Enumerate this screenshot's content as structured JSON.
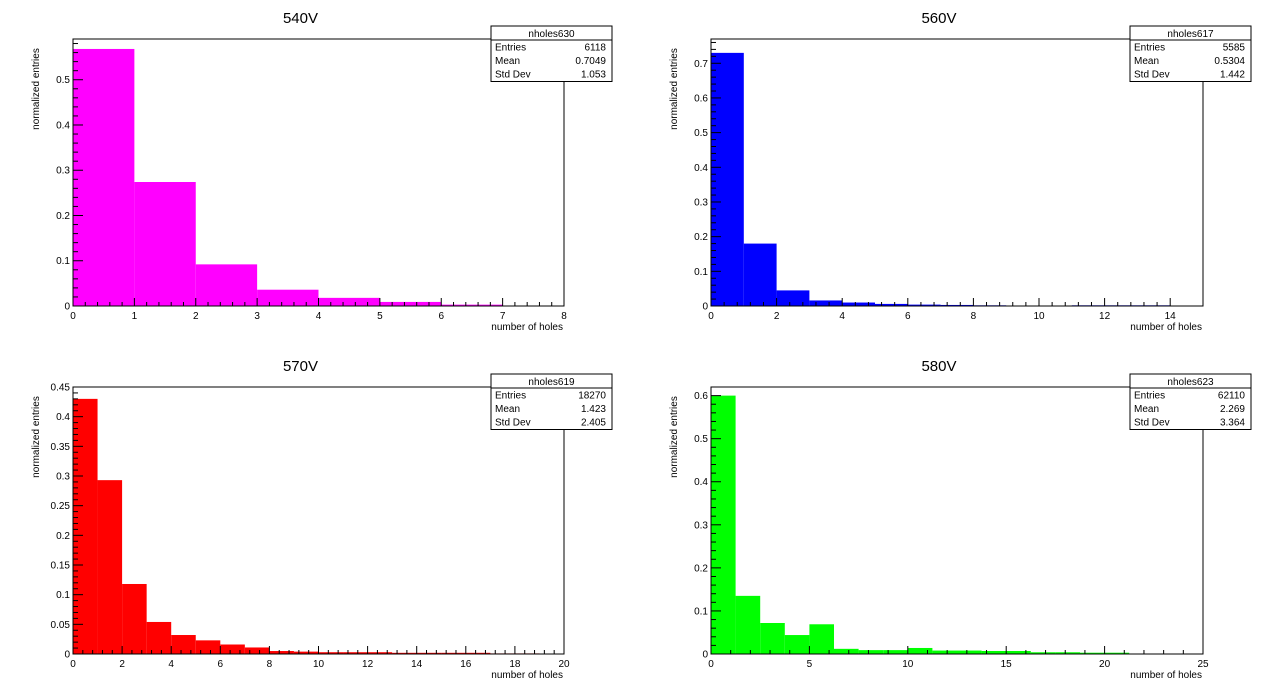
{
  "chart_data": [
    {
      "type": "bar",
      "title": "540V",
      "xlabel": "number of holes",
      "ylabel": "normalized entries",
      "color": "#ff00ff",
      "xlim": [
        0,
        8
      ],
      "ylim": [
        0,
        0.59
      ],
      "xticks": [
        0,
        1,
        2,
        3,
        4,
        5,
        6,
        7,
        8
      ],
      "yticks": [
        0,
        0.1,
        0.2,
        0.3,
        0.4,
        0.5
      ],
      "bin_edges": [
        0,
        1,
        2,
        3,
        4,
        5,
        6,
        7,
        8
      ],
      "values": [
        0.568,
        0.274,
        0.092,
        0.036,
        0.018,
        0.009,
        0.003,
        0.0
      ],
      "stats": {
        "name": "nholes630",
        "entries_label": "Entries",
        "entries": "6118",
        "mean_label": "Mean",
        "mean": "0.7049",
        "std_label": "Std Dev",
        "std": "1.053"
      }
    },
    {
      "type": "bar",
      "title": "560V",
      "xlabel": "number of holes",
      "ylabel": "normalized entries",
      "color": "#0000ff",
      "xlim": [
        0,
        15
      ],
      "ylim": [
        0,
        0.77
      ],
      "xticks": [
        0,
        2,
        4,
        6,
        8,
        10,
        12,
        14
      ],
      "yticks": [
        0,
        0.1,
        0.2,
        0.3,
        0.4,
        0.5,
        0.6,
        0.7
      ],
      "bin_edges": [
        0,
        1,
        2,
        3,
        4,
        5,
        6,
        7,
        8,
        9,
        10,
        11,
        12,
        13,
        14,
        15
      ],
      "values": [
        0.73,
        0.18,
        0.045,
        0.016,
        0.01,
        0.006,
        0.004,
        0.003,
        0.002,
        0.001,
        0.001,
        0.002,
        0.002,
        0.002,
        0.001
      ],
      "stats": {
        "name": "nholes617",
        "entries_label": "Entries",
        "entries": "5585",
        "mean_label": "Mean",
        "mean": "0.5304",
        "std_label": "Std Dev",
        "std": "1.442"
      }
    },
    {
      "type": "bar",
      "title": "570V",
      "xlabel": "number of holes",
      "ylabel": "normalized entries",
      "color": "#ff0000",
      "xlim": [
        0,
        20
      ],
      "ylim": [
        0,
        0.45
      ],
      "xticks": [
        0,
        2,
        4,
        6,
        8,
        10,
        12,
        14,
        16,
        18,
        20
      ],
      "yticks": [
        0,
        0.05,
        0.1,
        0.15,
        0.2,
        0.25,
        0.3,
        0.35,
        0.4,
        0.45
      ],
      "bin_edges": [
        0,
        1,
        2,
        3,
        4,
        5,
        6,
        7,
        8,
        9,
        10,
        11,
        12,
        13,
        14,
        15,
        16,
        17,
        18,
        19,
        20
      ],
      "values": [
        0.43,
        0.293,
        0.118,
        0.054,
        0.032,
        0.023,
        0.016,
        0.011,
        0.005,
        0.004,
        0.003,
        0.003,
        0.003,
        0.002,
        0.002,
        0.002,
        0.002,
        0.001,
        0.001,
        0.0
      ],
      "stats": {
        "name": "nholes619",
        "entries_label": "Entries",
        "entries": "18270",
        "mean_label": "Mean",
        "mean": "1.423",
        "std_label": "Std Dev",
        "std": "2.405"
      }
    },
    {
      "type": "bar",
      "title": "580V",
      "xlabel": "number of holes",
      "ylabel": "normalized entries",
      "color": "#00ff00",
      "xlim": [
        0,
        25
      ],
      "ylim": [
        0,
        0.62
      ],
      "xticks": [
        0,
        5,
        10,
        15,
        20,
        25
      ],
      "yticks": [
        0,
        0.1,
        0.2,
        0.3,
        0.4,
        0.5,
        0.6
      ],
      "bin_edges": [
        0,
        1.25,
        2.5,
        3.75,
        5,
        6.25,
        7.5,
        8.75,
        10,
        11.25,
        12.5,
        13.75,
        15,
        16.25,
        17.5,
        18.75,
        20,
        21.25,
        22.5,
        23.75,
        25
      ],
      "values": [
        0.6,
        0.135,
        0.072,
        0.044,
        0.069,
        0.012,
        0.009,
        0.009,
        0.014,
        0.008,
        0.008,
        0.007,
        0.007,
        0.004,
        0.004,
        0.003,
        0.003,
        0.001,
        0.0,
        0.0
      ],
      "stats": {
        "name": "nholes623",
        "entries_label": "Entries",
        "entries": "62110",
        "mean_label": "Mean",
        "mean": "2.269",
        "std_label": "Std Dev",
        "std": "3.364"
      }
    }
  ]
}
